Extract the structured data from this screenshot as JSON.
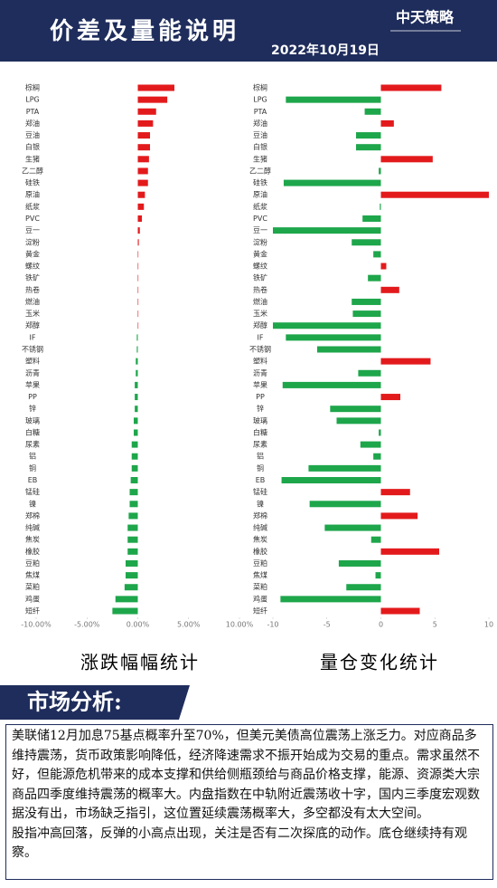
{
  "header": {
    "title": "价差及量能说明",
    "date": "2022年10月19日",
    "logo": "中天策略"
  },
  "chart_data": [
    {
      "type": "bar",
      "orientation": "horizontal",
      "title": "涨跌幅幅统计",
      "categories": [
        "棕榈",
        "LPG",
        "PTA",
        "郑油",
        "豆油",
        "白银",
        "生猪",
        "乙二醇",
        "硅铁",
        "原油",
        "纸浆",
        "PVC",
        "豆一",
        "淀粉",
        "黄金",
        "螺纹",
        "铁矿",
        "热卷",
        "燃油",
        "玉米",
        "郑醇",
        "IF",
        "不锈钢",
        "塑料",
        "沥青",
        "苹果",
        "PP",
        "锌",
        "玻璃",
        "白糖",
        "尿素",
        "铝",
        "铜",
        "EB",
        "锰硅",
        "镍",
        "郑棉",
        "纯碱",
        "焦炭",
        "橡胶",
        "豆粕",
        "焦煤",
        "菜粕",
        "鸡蛋",
        "短纤"
      ],
      "values": [
        3.6,
        2.9,
        1.8,
        1.5,
        1.2,
        1.2,
        1.1,
        1.0,
        1.0,
        0.7,
        0.6,
        0.4,
        0.2,
        0.1,
        0.05,
        0.05,
        0,
        0,
        0,
        0,
        0,
        -0.1,
        -0.1,
        -0.2,
        -0.2,
        -0.3,
        -0.3,
        -0.3,
        -0.4,
        -0.4,
        -0.6,
        -0.6,
        -0.6,
        -0.7,
        -0.8,
        -0.8,
        -0.9,
        -1.0,
        -1.0,
        -1.0,
        -1.2,
        -1.2,
        -1.3,
        -2.2,
        -2.5
      ],
      "positive_color": "#e31a1c",
      "negative_color": "#1ea64b",
      "xlim": [
        -10,
        10
      ],
      "xticks": [
        {
          "value": -10,
          "label": "-10.00%"
        },
        {
          "value": -5,
          "label": "-5.00%"
        },
        {
          "value": 0,
          "label": "0.00%"
        },
        {
          "value": 5,
          "label": "5.00%"
        },
        {
          "value": 10,
          "label": "10.00%"
        }
      ]
    },
    {
      "type": "bar",
      "orientation": "horizontal",
      "title": "量仓变化统计",
      "categories": [
        "棕榈",
        "LPG",
        "PTA",
        "郑油",
        "豆油",
        "白银",
        "生猪",
        "乙二醇",
        "硅铁",
        "原油",
        "纸浆",
        "PVC",
        "豆一",
        "淀粉",
        "黄金",
        "螺纹",
        "铁矿",
        "热卷",
        "燃油",
        "玉米",
        "郑醇",
        "IF",
        "不锈钢",
        "塑料",
        "沥青",
        "苹果",
        "PP",
        "锌",
        "玻璃",
        "白糖",
        "尿素",
        "铝",
        "铜",
        "EB",
        "锰硅",
        "镍",
        "郑棉",
        "纯碱",
        "焦炭",
        "橡胶",
        "豆粕",
        "焦煤",
        "菜粕",
        "鸡蛋",
        "短纤"
      ],
      "values": [
        5.6,
        -8.8,
        -1.5,
        1.2,
        -2.3,
        -2.3,
        4.8,
        -0.2,
        -9.0,
        10,
        -0.1,
        -1.7,
        -10,
        -2.7,
        -0.7,
        0.5,
        -1.2,
        1.7,
        -2.7,
        -2.6,
        -10,
        -8.8,
        -5.9,
        4.6,
        -2.1,
        -9.1,
        1.8,
        -4.7,
        -4.1,
        -0.2,
        -1.9,
        -0.7,
        -6.7,
        -9.2,
        2.7,
        -6.6,
        3.4,
        -5.2,
        -0.9,
        5.4,
        -3.9,
        -0.5,
        -3.2,
        -9.3,
        3.6
      ],
      "positive_color": "#e31a1c",
      "negative_color": "#1ea64b",
      "xlim": [
        -10,
        10
      ],
      "xticks": [
        -10,
        -5,
        0,
        5,
        10
      ]
    }
  ],
  "analysis": {
    "heading": "市场分析:",
    "paragraphs": [
      "美联储12月加息75基点概率升至70%，但美元美债高位震荡上涨乏力。对应商品多维持震荡，货币政策影响降低，经济降速需求不振开始成为交易的重点。需求虽然不好，但能源危机带来的成本支撑和供给侧瓶颈给与商品价格支撑，能源、资源类大宗商品四季度维持震荡的概率大。内盘指数在中轨附近震荡收十字，国内三季度宏观数据没有出，市场缺乏指引，这位置延续震荡概率大，多空都没有太大空间。",
      "股指冲高回落，反弹的小高点出现，关注是否有二次探底的动作。底仓继续持有观察。"
    ]
  }
}
